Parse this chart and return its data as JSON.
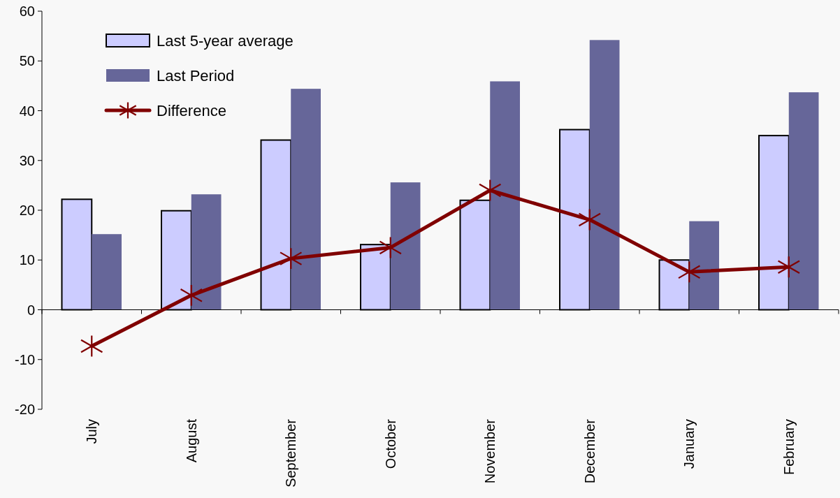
{
  "chart_data": {
    "type": "bar",
    "categories": [
      "July",
      "August",
      "September",
      "October",
      "November",
      "December",
      "January",
      "February"
    ],
    "series": [
      {
        "name": "Last 5-year average",
        "color": "#ccccff",
        "values": [
          22.2,
          19.9,
          34.1,
          13.1,
          22,
          36.2,
          10,
          35
        ]
      },
      {
        "name": "Last Period",
        "color": "#666699",
        "values": [
          15.2,
          23.2,
          44.4,
          25.6,
          45.9,
          54.2,
          17.8,
          43.7
        ]
      },
      {
        "name": "Difference",
        "type": "line",
        "color": "#800000",
        "marker": "star",
        "values": [
          -7.3,
          2.9,
          10.3,
          12.5,
          24,
          18.1,
          7.6,
          8.6
        ]
      }
    ],
    "ylim": [
      -20,
      60
    ],
    "yticks": [
      -20,
      -10,
      0,
      10,
      20,
      30,
      40,
      50,
      60
    ],
    "grid": false,
    "legend": "top left",
    "ref_lines": [
      {
        "axis": "y",
        "value": 0,
        "color": "#000000"
      }
    ]
  }
}
